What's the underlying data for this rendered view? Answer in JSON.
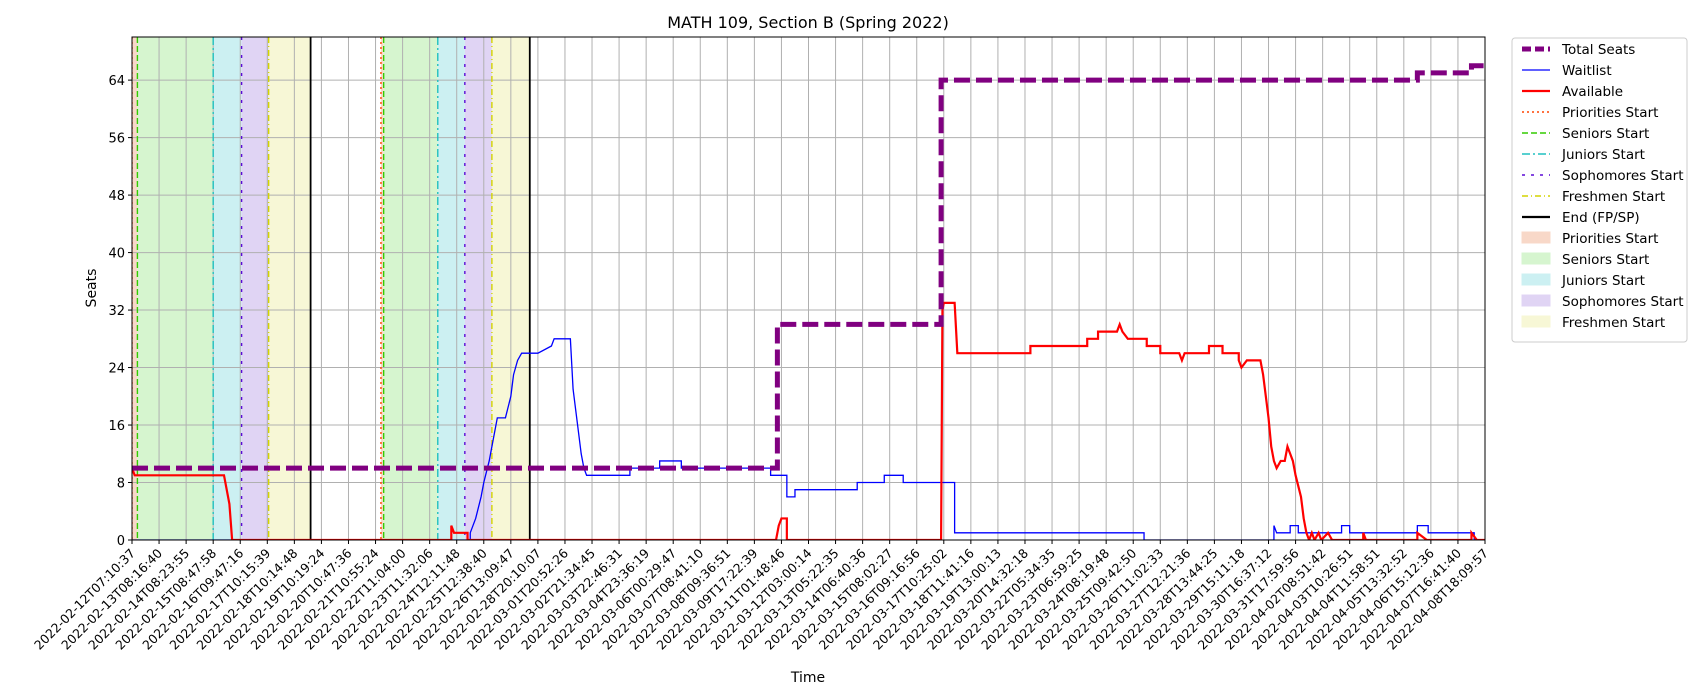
{
  "chart_data": {
    "type": "line",
    "title": "MATH 109, Section B (Spring 2022)",
    "xlabel": "Time",
    "ylabel": "Seats",
    "ylim": [
      0,
      70
    ],
    "xlim": [
      "2022-02-12T07:10:37",
      "2022-04-08T18:09:57"
    ],
    "y_ticks": [
      0,
      8,
      16,
      24,
      32,
      40,
      48,
      56,
      64
    ],
    "x_tick_labels": [
      "2022-02-12T07:10:37",
      "2022-02-13T08:16:40",
      "2022-02-14T08:23:55",
      "2022-02-15T08:47:58",
      "2022-02-16T09:47:16",
      "2022-02-17T10:15:39",
      "2022-02-18T10:14:48",
      "2022-02-19T10:19:24",
      "2022-02-20T10:47:36",
      "2022-02-21T10:55:24",
      "2022-02-22T11:04:00",
      "2022-02-23T11:32:06",
      "2022-02-24T12:11:48",
      "2022-02-25T12:38:40",
      "2022-02-26T13:09:47",
      "2022-02-28T20:10:07",
      "2022-03-01T20:52:26",
      "2022-03-02T21:34:45",
      "2022-03-03T22:46:31",
      "2022-03-04T23:36:19",
      "2022-03-06T00:29:47",
      "2022-03-07T08:41:10",
      "2022-03-08T09:36:51",
      "2022-03-09T17:22:39",
      "2022-03-11T01:48:46",
      "2022-03-12T03:00:14",
      "2022-03-13T05:22:35",
      "2022-03-14T06:40:36",
      "2022-03-15T08:02:27",
      "2022-03-16T09:16:56",
      "2022-03-17T10:25:02",
      "2022-03-18T11:41:16",
      "2022-03-19T13:00:13",
      "2022-03-20T14:32:18",
      "2022-03-22T05:34:35",
      "2022-03-23T06:59:25",
      "2022-03-24T08:19:48",
      "2022-03-25T09:42:50",
      "2022-03-26T11:02:33",
      "2022-03-27T12:21:36",
      "2022-03-28T13:44:25",
      "2022-03-29T15:11:18",
      "2022-03-30T16:37:12",
      "2022-03-31T17:59:56",
      "2022-04-02T08:51:42",
      "2022-04-03T10:26:51",
      "2022-04-04T11:58:51",
      "2022-04-05T13:32:52",
      "2022-04-06T15:12:36",
      "2022-04-07T16:41:40",
      "2022-04-08T18:09:57"
    ],
    "grid": true,
    "legend_position": "outside-right",
    "legend": [
      {
        "label": "Total Seats",
        "kind": "line",
        "color": "#800080",
        "style": "dashed-thick"
      },
      {
        "label": "Waitlist",
        "kind": "line",
        "color": "#0000ff",
        "style": "solid-thin"
      },
      {
        "label": "Available",
        "kind": "line",
        "color": "#ff0000",
        "style": "solid"
      },
      {
        "label": "Priorities Start",
        "kind": "line",
        "color": "#ff4500",
        "style": "dotted"
      },
      {
        "label": "Seniors Start",
        "kind": "line",
        "color": "#33cc00",
        "style": "dashed"
      },
      {
        "label": "Juniors Start",
        "kind": "line",
        "color": "#20c0c0",
        "style": "dashdot"
      },
      {
        "label": "Sophomores Start",
        "kind": "line",
        "color": "#5b0ad6",
        "style": "sparse"
      },
      {
        "label": "Freshmen Start",
        "kind": "line",
        "color": "#d4d400",
        "style": "dashdot-thin"
      },
      {
        "label": "End (FP/SP)",
        "kind": "line",
        "color": "#000000",
        "style": "solid"
      },
      {
        "label": "Priorities Start",
        "kind": "patch",
        "color": "#f8d8c8"
      },
      {
        "label": "Seniors Start",
        "kind": "patch",
        "color": "#d6f5cf"
      },
      {
        "label": "Juniors Start",
        "kind": "patch",
        "color": "#ccf0f2"
      },
      {
        "label": "Sophomores Start",
        "kind": "patch",
        "color": "#e0d4f4"
      },
      {
        "label": "Freshmen Start",
        "kind": "patch",
        "color": "#f7f7d6"
      }
    ],
    "phases": [
      {
        "priorities": 0.0,
        "seniors": 0.2,
        "juniors": 3.0,
        "sophomores": 4.05,
        "freshmen": 5.05,
        "end": 6.6
      },
      {
        "priorities": 9.2,
        "seniors": 9.3,
        "juniors": 11.3,
        "sophomores": 12.3,
        "freshmen": 13.3,
        "end": 14.7
      }
    ],
    "series": [
      {
        "name": "Total Seats",
        "color": "#800080",
        "step": true,
        "points": [
          [
            0,
            10
          ],
          [
            23.85,
            10
          ],
          [
            23.85,
            30
          ],
          [
            29.9,
            30
          ],
          [
            29.9,
            64
          ],
          [
            47.5,
            64
          ],
          [
            47.5,
            65
          ],
          [
            49.5,
            65
          ],
          [
            49.5,
            66
          ],
          [
            51.1,
            66
          ]
        ]
      },
      {
        "name": "Waitlist",
        "color": "#0000ff",
        "step": true,
        "points": [
          [
            0,
            0
          ],
          [
            12.5,
            0
          ],
          [
            12.5,
            1
          ],
          [
            12.7,
            3
          ],
          [
            12.9,
            6
          ],
          [
            13.0,
            8
          ],
          [
            13.2,
            11
          ],
          [
            13.35,
            14
          ],
          [
            13.5,
            17
          ],
          [
            13.8,
            17
          ],
          [
            14.0,
            20
          ],
          [
            14.1,
            23
          ],
          [
            14.25,
            25
          ],
          [
            14.4,
            26
          ],
          [
            15.0,
            26
          ],
          [
            15.5,
            27
          ],
          [
            15.6,
            28
          ],
          [
            16.2,
            28
          ],
          [
            16.3,
            21
          ],
          [
            16.4,
            18
          ],
          [
            16.5,
            15
          ],
          [
            16.6,
            12
          ],
          [
            16.7,
            10
          ],
          [
            16.8,
            9
          ],
          [
            18.4,
            9
          ],
          [
            18.4,
            10
          ],
          [
            19.5,
            10
          ],
          [
            19.5,
            11
          ],
          [
            20.3,
            11
          ],
          [
            20.3,
            10
          ],
          [
            23.6,
            10
          ],
          [
            23.6,
            9
          ],
          [
            24.2,
            9
          ],
          [
            24.2,
            6
          ],
          [
            24.5,
            6
          ],
          [
            24.5,
            7
          ],
          [
            26.8,
            7
          ],
          [
            26.8,
            8
          ],
          [
            27.8,
            8
          ],
          [
            27.8,
            9
          ],
          [
            28.5,
            9
          ],
          [
            28.5,
            8
          ],
          [
            30.4,
            8
          ],
          [
            30.4,
            1
          ],
          [
            37.4,
            1
          ],
          [
            37.4,
            0
          ],
          [
            42.2,
            0
          ],
          [
            42.2,
            2
          ],
          [
            42.3,
            1
          ],
          [
            42.8,
            1
          ],
          [
            42.8,
            2
          ],
          [
            43.1,
            2
          ],
          [
            43.1,
            1
          ],
          [
            44.7,
            1
          ],
          [
            44.7,
            2
          ],
          [
            45.0,
            2
          ],
          [
            45.0,
            1
          ],
          [
            47.5,
            1
          ],
          [
            47.5,
            2
          ],
          [
            47.9,
            2
          ],
          [
            47.9,
            1
          ],
          [
            49.6,
            1
          ],
          [
            49.6,
            0
          ],
          [
            51.1,
            0
          ]
        ]
      },
      {
        "name": "Available",
        "color": "#ff0000",
        "step": true,
        "points": [
          [
            0,
            10
          ],
          [
            0.1,
            9
          ],
          [
            3.4,
            9
          ],
          [
            3.5,
            7
          ],
          [
            3.6,
            5
          ],
          [
            3.7,
            0
          ],
          [
            11.8,
            0
          ],
          [
            11.8,
            2
          ],
          [
            11.9,
            1
          ],
          [
            12.4,
            1
          ],
          [
            12.4,
            0
          ],
          [
            23.8,
            0
          ],
          [
            23.9,
            2
          ],
          [
            24.0,
            3
          ],
          [
            24.2,
            3
          ],
          [
            24.2,
            0
          ],
          [
            29.9,
            0
          ],
          [
            29.95,
            32
          ],
          [
            30.0,
            33
          ],
          [
            30.4,
            33
          ],
          [
            30.5,
            26
          ],
          [
            33.2,
            26
          ],
          [
            33.2,
            27
          ],
          [
            35.3,
            27
          ],
          [
            35.3,
            28
          ],
          [
            35.7,
            28
          ],
          [
            35.7,
            29
          ],
          [
            36.4,
            29
          ],
          [
            36.5,
            30
          ],
          [
            36.6,
            29
          ],
          [
            36.8,
            28
          ],
          [
            37.5,
            28
          ],
          [
            37.5,
            27
          ],
          [
            38.0,
            27
          ],
          [
            38.0,
            26
          ],
          [
            38.7,
            26
          ],
          [
            38.8,
            25
          ],
          [
            38.9,
            26
          ],
          [
            39.8,
            26
          ],
          [
            39.8,
            27
          ],
          [
            40.3,
            27
          ],
          [
            40.3,
            26
          ],
          [
            40.9,
            26
          ],
          [
            40.9,
            25
          ],
          [
            41.0,
            24
          ],
          [
            41.2,
            25
          ],
          [
            41.7,
            25
          ],
          [
            41.8,
            23
          ],
          [
            41.9,
            20
          ],
          [
            42.0,
            17
          ],
          [
            42.1,
            13
          ],
          [
            42.2,
            11
          ],
          [
            42.3,
            10
          ],
          [
            42.45,
            11
          ],
          [
            42.6,
            11
          ],
          [
            42.7,
            13
          ],
          [
            42.8,
            12
          ],
          [
            42.9,
            11
          ],
          [
            43.0,
            9
          ],
          [
            43.2,
            6
          ],
          [
            43.3,
            3
          ],
          [
            43.4,
            1
          ],
          [
            43.5,
            0
          ],
          [
            43.6,
            1
          ],
          [
            43.7,
            0
          ],
          [
            43.85,
            1
          ],
          [
            43.95,
            0
          ],
          [
            44.2,
            1
          ],
          [
            44.35,
            0
          ],
          [
            45.5,
            0
          ],
          [
            45.5,
            1
          ],
          [
            45.6,
            0
          ],
          [
            47.5,
            0
          ],
          [
            47.5,
            1
          ],
          [
            47.85,
            0
          ],
          [
            49.5,
            0
          ],
          [
            49.5,
            1
          ],
          [
            49.7,
            0
          ],
          [
            51.1,
            0
          ]
        ]
      }
    ]
  }
}
